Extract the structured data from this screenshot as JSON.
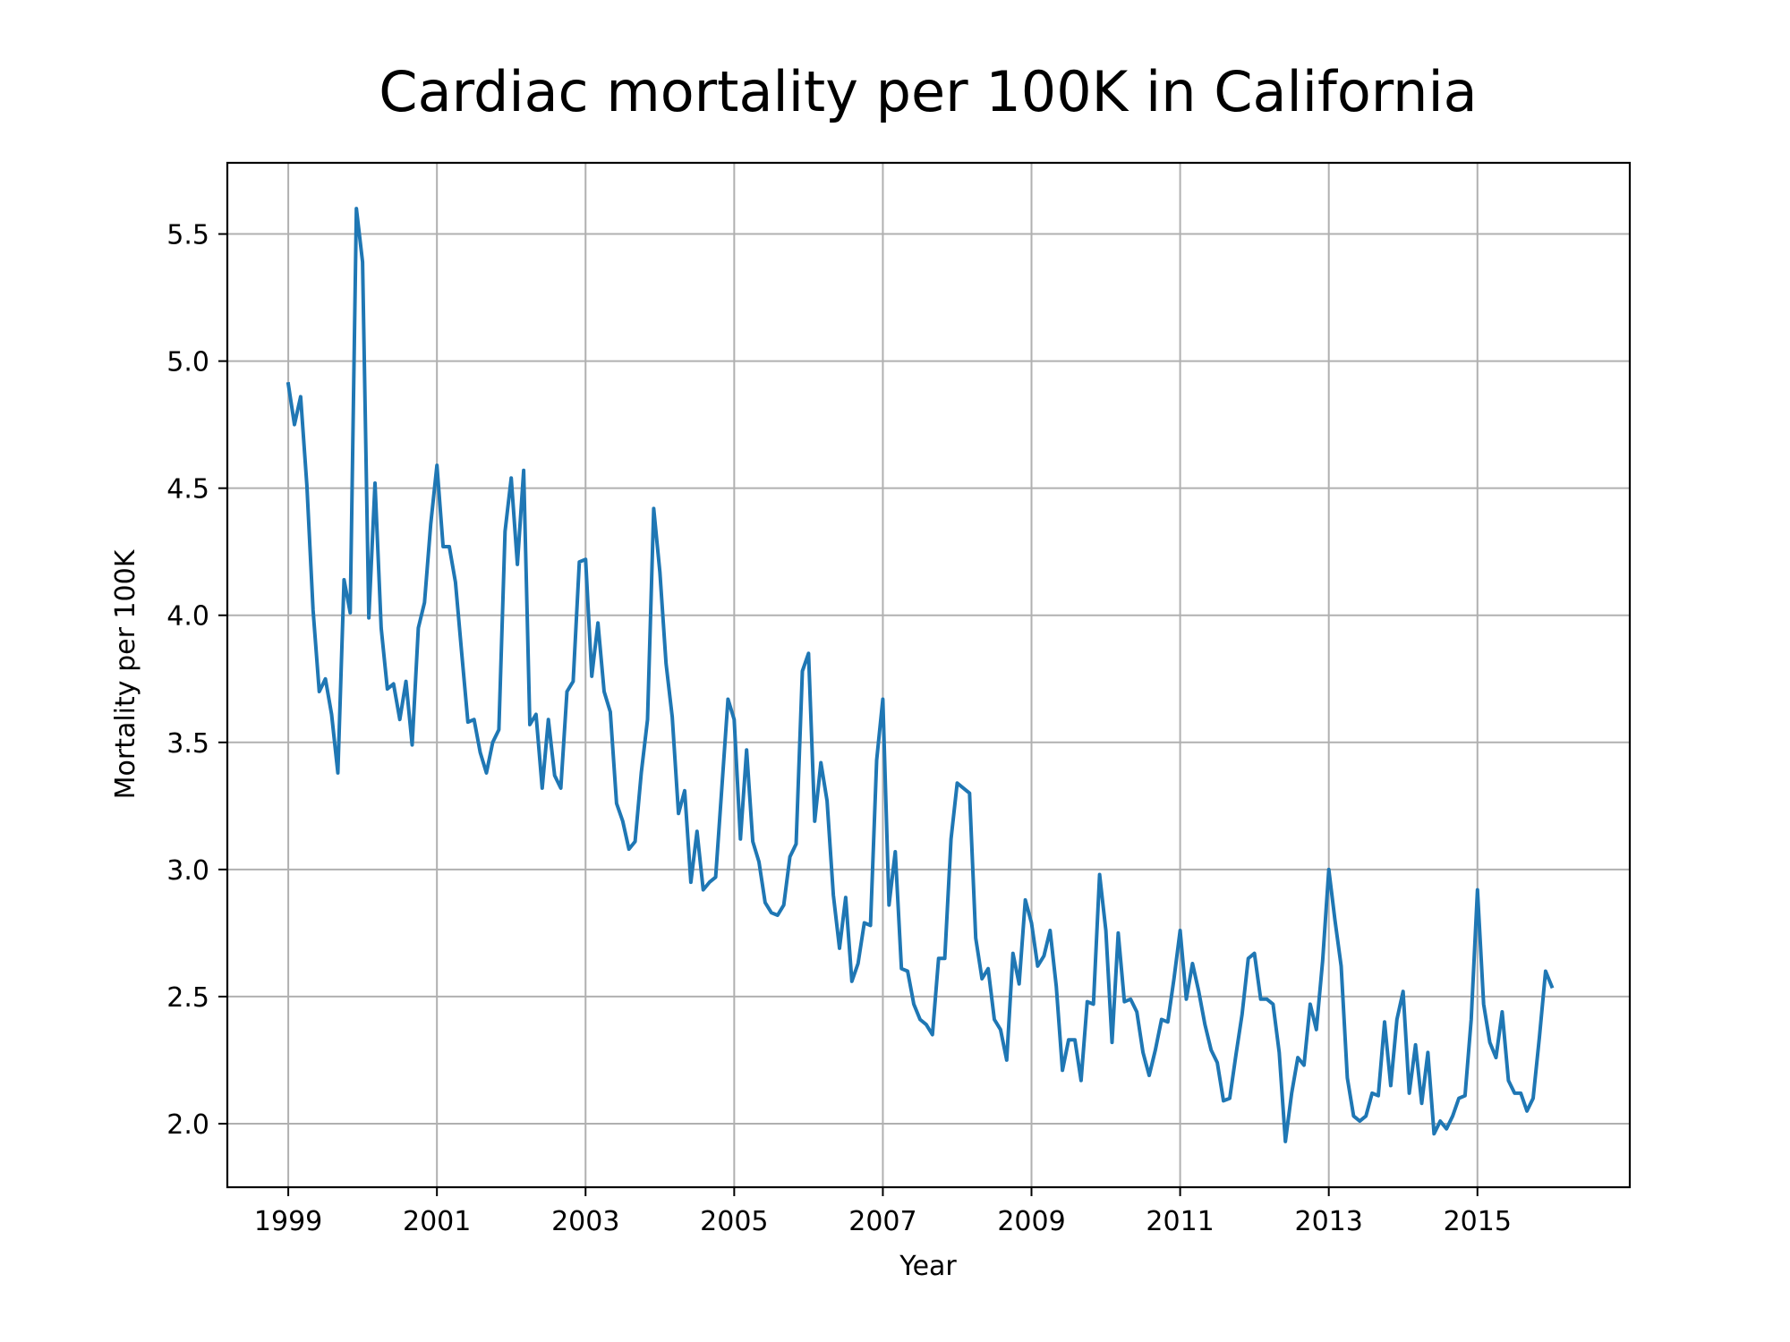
{
  "chart_data": {
    "type": "line",
    "title": "Cardiac mortality per 100K in California",
    "xlabel": "Year",
    "ylabel": "Mortality per 100K",
    "xlim": [
      1998.18,
      2017.05
    ],
    "ylim": [
      1.75,
      5.78
    ],
    "xticks": [
      1999,
      2001,
      2003,
      2005,
      2007,
      2009,
      2011,
      2013,
      2015
    ],
    "xtick_labels": [
      "1999",
      "2001",
      "2003",
      "2005",
      "2007",
      "2009",
      "2011",
      "2013",
      "2015"
    ],
    "yticks": [
      2.0,
      2.5,
      3.0,
      3.5,
      4.0,
      4.5,
      5.0,
      5.5
    ],
    "ytick_labels": [
      "2.0",
      "2.5",
      "3.0",
      "3.5",
      "4.0",
      "4.5",
      "5.0",
      "5.5"
    ],
    "grid": true,
    "color": "#1f77b4",
    "series": [
      {
        "x_start": 1999,
        "x_step_months": 1,
        "values": [
          4.91,
          4.75,
          4.86,
          4.51,
          4.02,
          3.7,
          3.75,
          3.61,
          3.38,
          4.14,
          4.01,
          5.6,
          5.39,
          3.99,
          4.52,
          3.95,
          3.71,
          3.73,
          3.59,
          3.74,
          3.49,
          3.95,
          4.05,
          4.36,
          4.59,
          4.27,
          4.27,
          4.13,
          3.85,
          3.58,
          3.59,
          3.46,
          3.38,
          3.5,
          3.55,
          4.33,
          4.54,
          4.2,
          4.57,
          3.57,
          3.61,
          3.32,
          3.59,
          3.37,
          3.32,
          3.7,
          3.74,
          4.21,
          4.22,
          3.76,
          3.97,
          3.7,
          3.62,
          3.26,
          3.19,
          3.08,
          3.11,
          3.38,
          3.59,
          4.42,
          4.17,
          3.81,
          3.6,
          3.22,
          3.31,
          2.95,
          3.15,
          2.92,
          2.95,
          2.97,
          3.32,
          3.67,
          3.59,
          3.12,
          3.47,
          3.11,
          3.03,
          2.87,
          2.83,
          2.82,
          2.86,
          3.05,
          3.1,
          3.78,
          3.85,
          3.19,
          3.42,
          3.27,
          2.9,
          2.69,
          2.89,
          2.56,
          2.63,
          2.79,
          2.78,
          3.43,
          3.67,
          2.86,
          3.07,
          2.61,
          2.6,
          2.47,
          2.41,
          2.39,
          2.35,
          2.65,
          2.65,
          3.12,
          3.34,
          3.32,
          3.3,
          2.73,
          2.57,
          2.61,
          2.41,
          2.37,
          2.25,
          2.67,
          2.55,
          2.88,
          2.79,
          2.62,
          2.66,
          2.76,
          2.54,
          2.21,
          2.33,
          2.33,
          2.17,
          2.48,
          2.47,
          2.98,
          2.76,
          2.32,
          2.75,
          2.48,
          2.49,
          2.44,
          2.28,
          2.19,
          2.29,
          2.41,
          2.4,
          2.57,
          2.76,
          2.49,
          2.63,
          2.52,
          2.39,
          2.29,
          2.24,
          2.09,
          2.1,
          2.27,
          2.43,
          2.65,
          2.67,
          2.49,
          2.49,
          2.47,
          2.28,
          1.93,
          2.12,
          2.26,
          2.23,
          2.47,
          2.37,
          2.64,
          3.0,
          2.8,
          2.62,
          2.18,
          2.03,
          2.01,
          2.03,
          2.12,
          2.11,
          2.4,
          2.15,
          2.41,
          2.52,
          2.12,
          2.31,
          2.08,
          2.28,
          1.96,
          2.01,
          1.98,
          2.03,
          2.1,
          2.11,
          2.41,
          2.92,
          2.47,
          2.32,
          2.26,
          2.44,
          2.17,
          2.12,
          2.12,
          2.05,
          2.1,
          2.34,
          2.6,
          2.54
        ]
      }
    ]
  }
}
